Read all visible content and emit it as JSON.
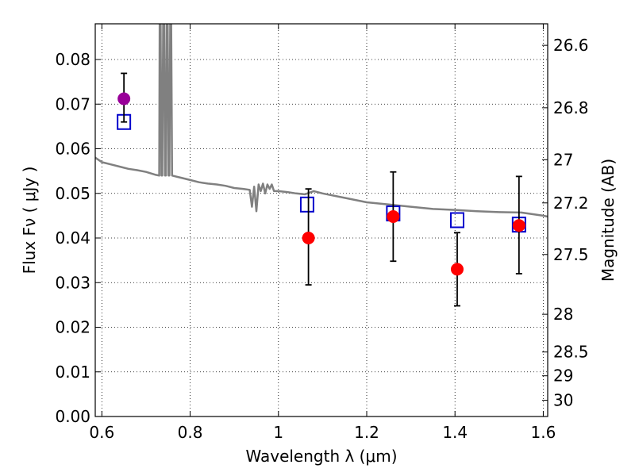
{
  "chart_data": {
    "type": "scatter",
    "xlabel": "Wavelength  λ (μm)",
    "ylabel": "Flux  Fν  ( μJy )",
    "ylabel_right": "Magnitude (AB)",
    "xlim": [
      0.585,
      1.61
    ],
    "ylim": [
      0.0,
      0.088
    ],
    "grid": true,
    "x_ticks": [
      {
        "value": 0.6,
        "label": "0.6"
      },
      {
        "value": 0.8,
        "label": "0.8"
      },
      {
        "value": 1.0,
        "label": "1"
      },
      {
        "value": 1.2,
        "label": "1.2"
      },
      {
        "value": 1.4,
        "label": "1.4"
      },
      {
        "value": 1.6,
        "label": "1.6"
      }
    ],
    "y_ticks": [
      {
        "value": 0.0,
        "label": "0.00"
      },
      {
        "value": 0.01,
        "label": "0.01"
      },
      {
        "value": 0.02,
        "label": "0.02"
      },
      {
        "value": 0.03,
        "label": "0.03"
      },
      {
        "value": 0.04,
        "label": "0.04"
      },
      {
        "value": 0.05,
        "label": "0.05"
      },
      {
        "value": 0.06,
        "label": "0.06"
      },
      {
        "value": 0.07,
        "label": "0.07"
      },
      {
        "value": 0.08,
        "label": "0.08"
      }
    ],
    "mag_ticks": [
      {
        "mag": 26.6,
        "label": "26.6"
      },
      {
        "mag": 26.8,
        "label": "26.8"
      },
      {
        "mag": 27.0,
        "label": "27"
      },
      {
        "mag": 27.2,
        "label": "27.2"
      },
      {
        "mag": 27.5,
        "label": "27.5"
      },
      {
        "mag": 28.0,
        "label": "28"
      },
      {
        "mag": 28.5,
        "label": "28.5"
      },
      {
        "mag": 29.0,
        "label": "29"
      },
      {
        "mag": 30.0,
        "label": "30"
      }
    ],
    "mag_zero_point": 23.9,
    "series": [
      {
        "kind": "line",
        "color": "#808080",
        "x": [
          0.585,
          0.6,
          0.62,
          0.64,
          0.66,
          0.68,
          0.7,
          0.72,
          0.73,
          0.731,
          0.733,
          0.735,
          0.737,
          0.739,
          0.741,
          0.743,
          0.745,
          0.747,
          0.749,
          0.751,
          0.753,
          0.755,
          0.757,
          0.759,
          0.78,
          0.8,
          0.82,
          0.84,
          0.86,
          0.88,
          0.9,
          0.92,
          0.935,
          0.94,
          0.945,
          0.95,
          0.955,
          0.96,
          0.965,
          0.97,
          0.975,
          0.98,
          0.985,
          0.99,
          1.0,
          1.02,
          1.04,
          1.06,
          1.08,
          1.1,
          1.15,
          1.2,
          1.25,
          1.3,
          1.35,
          1.4,
          1.45,
          1.5,
          1.55,
          1.6,
          1.61
        ],
        "y": [
          0.058,
          0.057,
          0.0565,
          0.056,
          0.0555,
          0.0552,
          0.0548,
          0.0542,
          0.054,
          0.09,
          0.09,
          0.054,
          0.054,
          0.09,
          0.09,
          0.054,
          0.054,
          0.09,
          0.09,
          0.054,
          0.054,
          0.09,
          0.09,
          0.054,
          0.0535,
          0.053,
          0.0525,
          0.0522,
          0.052,
          0.0517,
          0.0512,
          0.051,
          0.0508,
          0.047,
          0.0515,
          0.046,
          0.052,
          0.0505,
          0.0522,
          0.05,
          0.052,
          0.051,
          0.052,
          0.0505,
          0.0505,
          0.0503,
          0.05,
          0.0498,
          0.0505,
          0.05,
          0.049,
          0.048,
          0.0475,
          0.047,
          0.0465,
          0.0463,
          0.046,
          0.0458,
          0.0457,
          0.045,
          0.0448
        ]
      },
      {
        "kind": "squares",
        "color": "#0000cc",
        "x": [
          0.65,
          1.065,
          1.26,
          1.405,
          1.545
        ],
        "y": [
          0.066,
          0.0475,
          0.0455,
          0.044,
          0.043
        ]
      },
      {
        "kind": "points",
        "color": "#ff0000",
        "x": [
          1.068,
          1.26,
          1.405,
          1.545
        ],
        "y": [
          0.04,
          0.0448,
          0.033,
          0.0428
        ],
        "yerr_low": [
          0.0105,
          0.01,
          0.0082,
          0.0108
        ],
        "yerr_high": [
          0.011,
          0.01,
          0.0082,
          0.011
        ]
      },
      {
        "kind": "points",
        "color": "#990099",
        "x": [
          0.65
        ],
        "y": [
          0.0712
        ],
        "yerr_low": [
          0.0052
        ],
        "yerr_high": [
          0.0057
        ]
      }
    ]
  }
}
